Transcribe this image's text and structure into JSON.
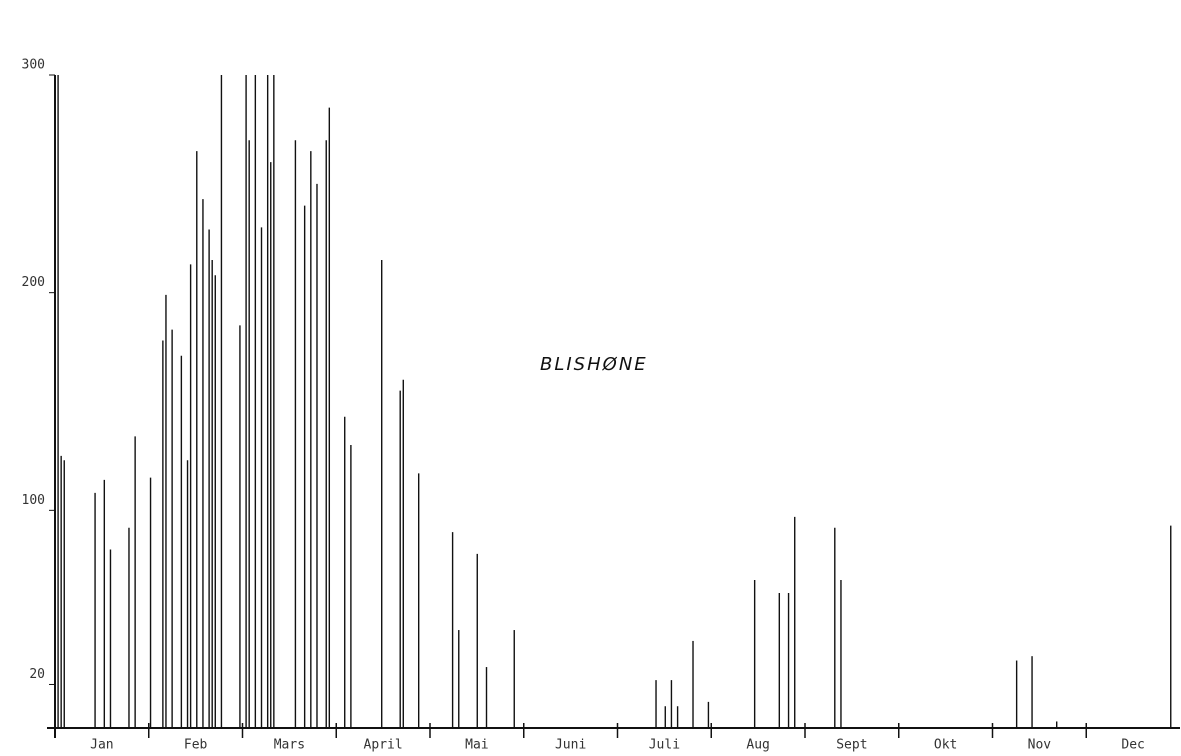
{
  "chart_data": {
    "type": "spike",
    "title": "BLISHØNE",
    "months": [
      "Jan",
      "Feb",
      "Mars",
      "April",
      "Mai",
      "Juni",
      "Juli",
      "Aug",
      "Sept",
      "Okt",
      "Nov",
      "Dec"
    ],
    "x": [
      2,
      3,
      4,
      14,
      17,
      19,
      25,
      27,
      32,
      36,
      37,
      39,
      42,
      44,
      45,
      47,
      49,
      51,
      52,
      53,
      55,
      61,
      63,
      64,
      66,
      68,
      70,
      71,
      72,
      79,
      82,
      84,
      86,
      89,
      90,
      95,
      97,
      107,
      113,
      114,
      119,
      130,
      132,
      138,
      141,
      150,
      196,
      199,
      201,
      203,
      208,
      213,
      228,
      236,
      239,
      241,
      254,
      256,
      313,
      318,
      326,
      363
    ],
    "values": [
      300,
      125,
      123,
      108,
      114,
      82,
      92,
      134,
      115,
      178,
      199,
      183,
      171,
      123,
      213,
      265,
      243,
      229,
      215,
      208,
      300,
      185,
      300,
      270,
      300,
      230,
      300,
      260,
      300,
      270,
      240,
      265,
      250,
      270,
      285,
      143,
      130,
      215,
      155,
      160,
      117,
      90,
      45,
      80,
      28,
      45,
      22,
      10,
      22,
      10,
      40,
      12,
      68,
      62,
      62,
      97,
      92,
      68,
      31,
      33,
      3,
      93
    ],
    "color": "#111111",
    "xlim": [
      1,
      366
    ],
    "ylim": [
      0,
      300
    ],
    "yticks": [
      20,
      100,
      200,
      300
    ]
  }
}
